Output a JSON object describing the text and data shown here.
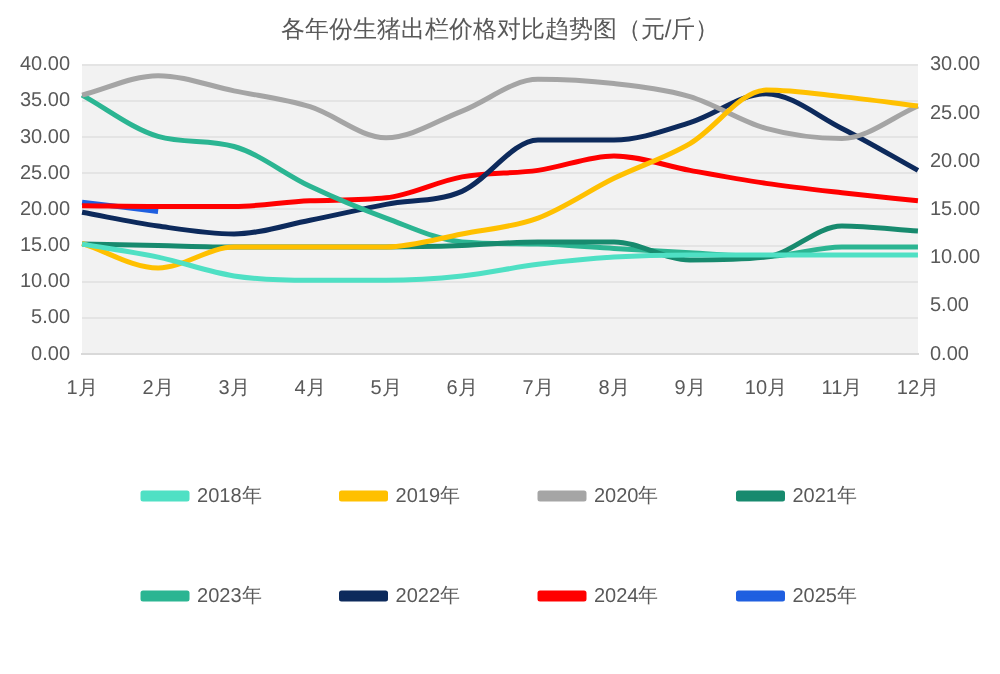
{
  "chart_data": {
    "type": "line",
    "title": "各年份生猪出栏价格对比趋势图（元/斤）",
    "categories": [
      "1月",
      "2月",
      "3月",
      "4月",
      "5月",
      "6月",
      "7月",
      "8月",
      "9月",
      "10月",
      "11月",
      "12月"
    ],
    "series": [
      {
        "name": "2018年",
        "color": "#4fe0c4",
        "values": [
          15.2,
          13.4,
          10.8,
          10.2,
          10.2,
          10.8,
          12.4,
          13.4,
          13.7,
          13.7,
          13.7,
          13.7
        ]
      },
      {
        "name": "2019年",
        "color": "#ffc000",
        "values": [
          15.3,
          11.9,
          14.8,
          14.8,
          14.8,
          16.6,
          18.8,
          24.3,
          29.1,
          36.5,
          35.6,
          34.3
        ]
      },
      {
        "name": "2020年",
        "color": "#a5a5a5",
        "values": [
          35.8,
          38.5,
          36.4,
          34.2,
          29.9,
          33.6,
          38.0,
          37.4,
          35.6,
          31.2,
          29.8,
          34.3
        ]
      },
      {
        "name": "2021年",
        "color": "#178a6e",
        "values": [
          15.2,
          15.0,
          14.8,
          14.8,
          14.8,
          15.0,
          15.5,
          15.5,
          13.0,
          13.4,
          17.7,
          17.0
        ]
      },
      {
        "name": "2023年",
        "color": "#2bb592",
        "values": [
          35.8,
          30.1,
          28.7,
          23.2,
          18.8,
          15.5,
          15.2,
          14.6,
          14.0,
          13.5,
          14.8,
          14.8
        ]
      },
      {
        "name": "2022年",
        "color": "#0d2a5c",
        "values": [
          19.6,
          17.7,
          16.6,
          18.5,
          20.7,
          22.5,
          29.6,
          29.6,
          32.0,
          36.0,
          31.2,
          25.4
        ]
      },
      {
        "name": "2024年",
        "color": "#ff0000",
        "values": [
          20.5,
          20.4,
          20.4,
          21.2,
          21.6,
          24.5,
          25.4,
          27.4,
          25.4,
          23.6,
          22.3,
          21.2
        ]
      },
      {
        "name": "2025年",
        "color": "#1f5fe0",
        "values": [
          21.0,
          19.7,
          null,
          null,
          null,
          null,
          null,
          null,
          null,
          null,
          null,
          null
        ]
      }
    ],
    "ylim": [
      0,
      40
    ],
    "yticks": [
      {
        "value": 0,
        "label": "0.00"
      },
      {
        "value": 5,
        "label": "5.00"
      },
      {
        "value": 10,
        "label": "10.00"
      },
      {
        "value": 15,
        "label": "15.00"
      },
      {
        "value": 20,
        "label": "20.00"
      },
      {
        "value": 25,
        "label": "25.00"
      },
      {
        "value": 30,
        "label": "30.00"
      },
      {
        "value": 35,
        "label": "35.00"
      },
      {
        "value": 40,
        "label": "40.00"
      }
    ],
    "y2lim": [
      0,
      30
    ],
    "y2ticks": [
      {
        "value": 0,
        "label": "0.00"
      },
      {
        "value": 5,
        "label": "5.00"
      },
      {
        "value": 10,
        "label": "10.00"
      },
      {
        "value": 15,
        "label": "15.00"
      },
      {
        "value": 20,
        "label": "20.00"
      },
      {
        "value": 25,
        "label": "25.00"
      },
      {
        "value": 30,
        "label": "30.00"
      }
    ],
    "grid": "y",
    "legend": "bottom",
    "marker": "none",
    "line_style": "solid"
  }
}
